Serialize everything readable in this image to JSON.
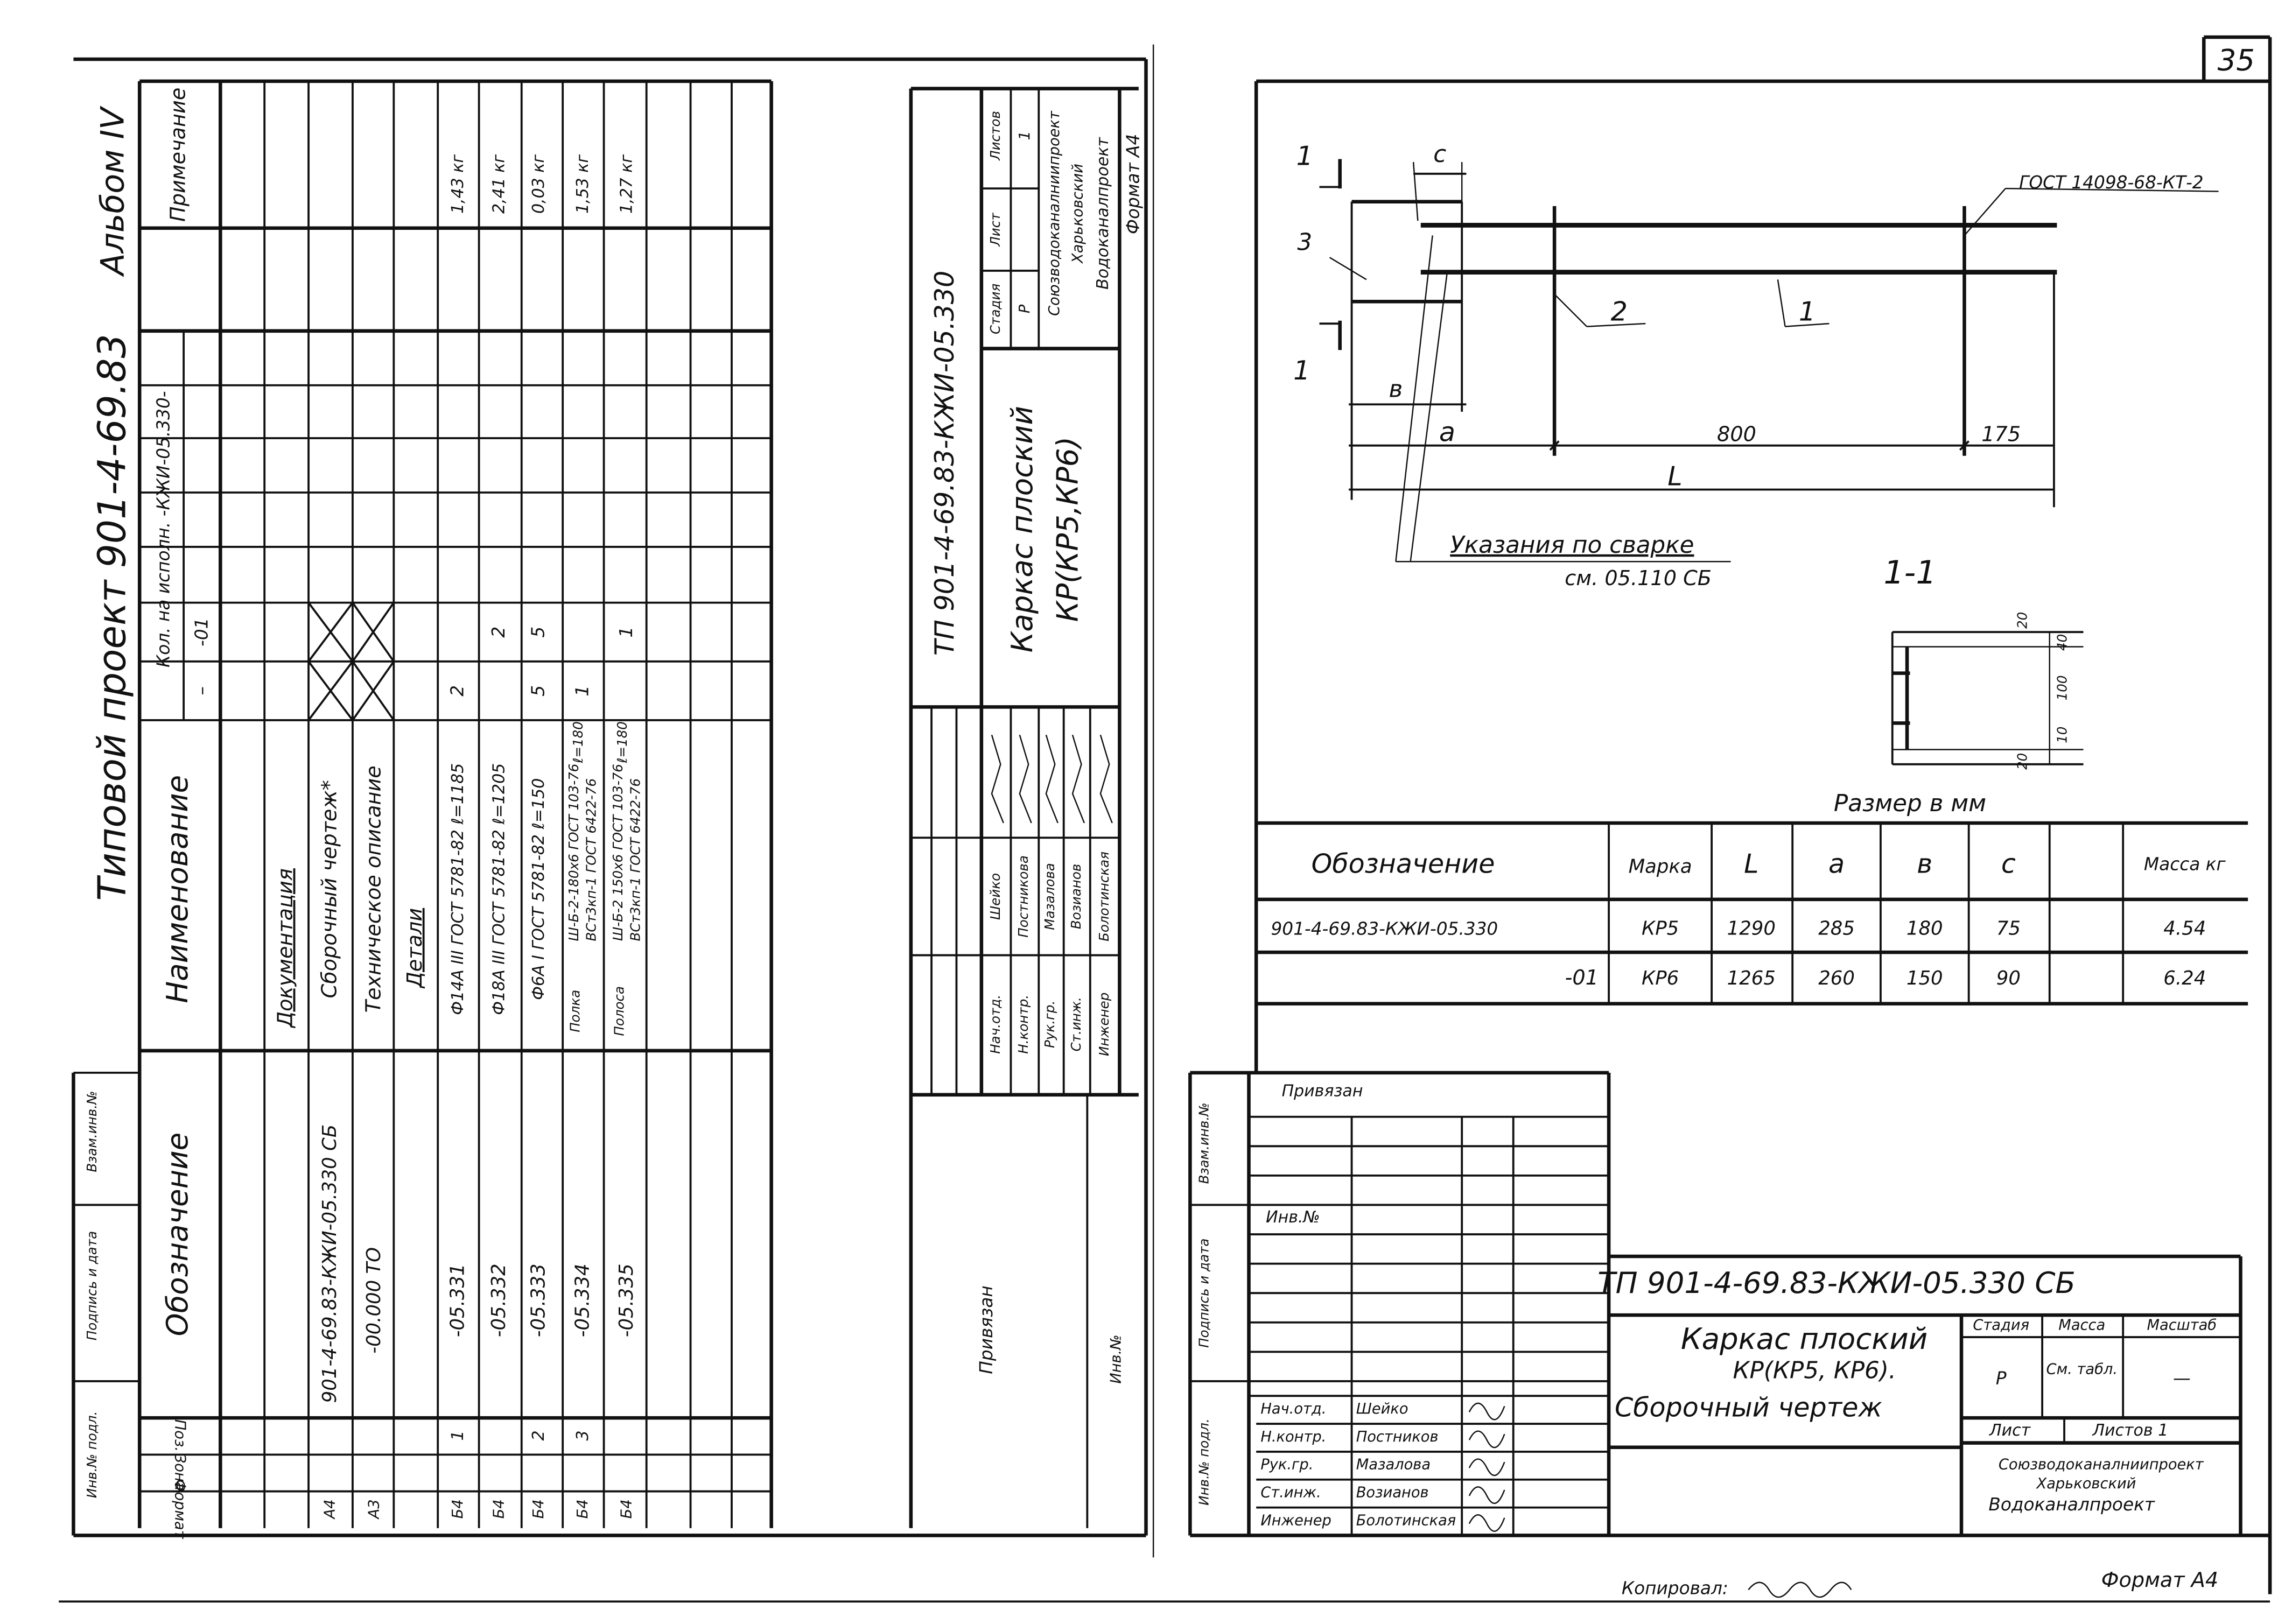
{
  "page_number": "35",
  "left_sheet": {
    "header": {
      "project": "Типовой проект 901-4-69.83",
      "album": "Альбом IV"
    },
    "side_labels": {
      "inv_orig": "Инв.№ подл.",
      "sign_date": "Подпись и дата",
      "replace_inv": "Взам.инв.№"
    },
    "spec_columns": {
      "format": "Формат",
      "zone": "Зона",
      "pos": "Поз.",
      "designation": "Обозначение",
      "name": "Наименование",
      "qty": "Кол. на исполн. -КЖИ-05.330-",
      "qty_base": "–",
      "qty_01": "-01",
      "note": "Примечание"
    },
    "rows": [
      {
        "format": "",
        "pos": "",
        "designation": "",
        "name": "Документация",
        "qty_base": "",
        "qty_01": "",
        "note": ""
      },
      {
        "format": "А4",
        "pos": "",
        "designation": "901-4-69.83-КЖИ-05.330 СБ",
        "name": "Сборочный чертеж*",
        "qty_base": "",
        "qty_01": "",
        "note": ""
      },
      {
        "format": "А3",
        "pos": "",
        "designation": "-00.000 ТО",
        "name": "Техническое описание",
        "qty_base": "",
        "qty_01": "",
        "note": ""
      },
      {
        "format": "",
        "pos": "",
        "designation": "",
        "name": "Детали",
        "qty_base": "",
        "qty_01": "",
        "note": ""
      },
      {
        "format": "Б4",
        "pos": "1",
        "designation": "-05.331",
        "name": "Ф14А III ГОСТ 5781-82 ℓ=1185",
        "qty_base": "2",
        "qty_01": "",
        "note": "1,43 кг"
      },
      {
        "format": "Б4",
        "pos": "",
        "designation": "-05.332",
        "name": "Ф18А III ГОСТ 5781-82 ℓ=1205",
        "qty_base": "",
        "qty_01": "2",
        "note": "2,41 кг"
      },
      {
        "format": "Б4",
        "pos": "2",
        "designation": "-05.333",
        "name": "Ф6А I ГОСТ 5781-82 ℓ=150",
        "qty_base": "5",
        "qty_01": "5",
        "note": "0,03 кг"
      },
      {
        "format": "Б4",
        "pos": "3",
        "designation": "-05.334",
        "name": "Полка",
        "name_l1": "Ш-Б-2-180х6 ГОСТ 103-76",
        "name_l2": "ВСт3кп-1 ГОСТ 6422-76",
        "name_len": "ℓ=180",
        "qty_base": "1",
        "qty_01": "",
        "note": "1,53 кг"
      },
      {
        "format": "Б4",
        "pos": "",
        "designation": "-05.335",
        "name": "Полоса",
        "name_l1": "Ш-Б-2 150х6 ГОСТ 103-76",
        "name_l2": "ВСт3кп-1 ГОСТ 6422-76",
        "name_len": "ℓ=180",
        "qty_base": "",
        "qty_01": "1",
        "note": "1,27 кг"
      }
    ],
    "title_block": {
      "code": "ТП 901-4-69.83-КЖИ-05.330",
      "title_l1": "Каркас плоский",
      "title_l2": "КР(КР5,КР6)",
      "stage_label": "Стадия",
      "sheet_label": "Лист",
      "sheets_label": "Листов",
      "stage": "Р",
      "sheets": "1",
      "org_l1": "Союзводоканалниипроект",
      "org_l2": "Харьковский",
      "org_l3": "Водоканалпроект",
      "signatures": [
        {
          "role": "Нач.отд.",
          "name": "Шейко"
        },
        {
          "role": "Н.контр.",
          "name": "Постникова"
        },
        {
          "role": "Рук.гр.",
          "name": "Мазалова"
        },
        {
          "role": "Ст.инж.",
          "name": "Возианов"
        },
        {
          "role": "Инженер",
          "name": "Болотинская"
        }
      ],
      "format": "Формат А4"
    },
    "bound_label": "Привязан",
    "inv_label": "Инв.№"
  },
  "right_sheet": {
    "drawing": {
      "section_mark": "1",
      "dim_c": "с",
      "pos3": "3",
      "pos2": "2",
      "pos1": "1",
      "weld_standard": "ГОСТ 14098-68-КТ-2",
      "dim_b": "в",
      "dim_a": "а",
      "dim_800": "800",
      "dim_175": "175",
      "dim_L": "L",
      "weld_note_l1": "Указания по сварке",
      "weld_note_l2": "см. 05.110 СБ",
      "section_title": "1-1",
      "section_dims": [
        "20",
        "40",
        "100",
        "10",
        "20"
      ],
      "units_note": "Размер в мм"
    },
    "table": {
      "headers": [
        "Обозначение",
        "Марка",
        "L",
        "а",
        "в",
        "с",
        "",
        "Масса кг"
      ],
      "rows": [
        [
          "901-4-69.83-КЖИ-05.330",
          "КР5",
          "1290",
          "285",
          "180",
          "75",
          "",
          "4.54"
        ],
        [
          "-01",
          "КР6",
          "1265",
          "260",
          "150",
          "90",
          "",
          "6.24"
        ]
      ]
    },
    "bound_label": "Привязан",
    "inv_label": "Инв.№",
    "side_labels": {
      "inv_orig": "Инв.№ подл.",
      "sign_date": "Подпись и дата",
      "replace_inv": "Взам.инв.№"
    },
    "title_block": {
      "code": "ТП 901-4-69.83-КЖИ-05.330 СБ",
      "title_l1": "Каркас плоский",
      "title_l2": "КР(КР5, КР6).",
      "title_l3": "Сборочный чертеж",
      "stage_label": "Стадия",
      "mass_label": "Масса",
      "scale_label": "Масштаб",
      "stage": "Р",
      "mass": "См. табл.",
      "scale": "—",
      "sheet_label": "Лист",
      "sheets_label": "Листов 1",
      "org_l1": "Союзводоканалниипроект",
      "org_l2": "Харьковский",
      "org_l3": "Водоканалпроект",
      "signatures": [
        {
          "role": "Нач.отд.",
          "name": "Шейко"
        },
        {
          "role": "Н.контр.",
          "name": "Постников"
        },
        {
          "role": "Рук.гр.",
          "name": "Мазалова"
        },
        {
          "role": "Ст.инж.",
          "name": "Возианов"
        },
        {
          "role": "Инженер",
          "name": "Болотинская"
        }
      ]
    }
  },
  "footer": {
    "copied": "Копировал:",
    "format": "Формат А4"
  },
  "colors": {
    "ink": "#111111",
    "paper": "#ffffff"
  }
}
